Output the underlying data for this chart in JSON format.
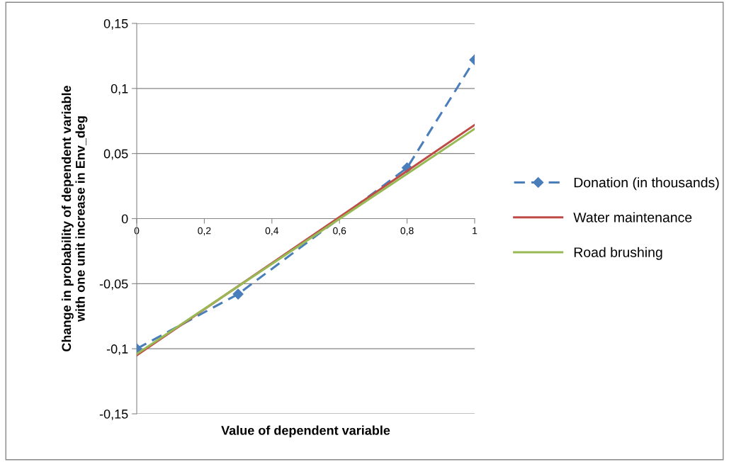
{
  "chart_data": {
    "type": "line",
    "xlabel": "Value of dependent variable",
    "ylabel": "Change in probability of dependent variable\nwith one unit increase in Env_deg",
    "series": [
      {
        "name": "Donation (in thousands)",
        "color": "#4a7ebb",
        "x": [
          0,
          0.3,
          0.8,
          1
        ],
        "values": [
          -0.1,
          -0.058,
          0.039,
          0.122
        ],
        "marker": "diamond",
        "line_style": "dashed"
      },
      {
        "name": "Water maintenance",
        "color": "#be4b48",
        "x": [
          0,
          1
        ],
        "values": [
          -0.105,
          0.072
        ],
        "marker": "none",
        "line_style": "solid"
      },
      {
        "name": "Road brushing",
        "color": "#98b954",
        "x": [
          0,
          1
        ],
        "values": [
          -0.104,
          0.069
        ],
        "marker": "none",
        "line_style": "solid"
      }
    ],
    "xlim": [
      0,
      1
    ],
    "xticks": [
      {
        "value": 0,
        "label": "0"
      },
      {
        "value": 0.2,
        "label": "0,2"
      },
      {
        "value": 0.4,
        "label": "0,4"
      },
      {
        "value": 0.6,
        "label": "0,6"
      },
      {
        "value": 0.8,
        "label": "0,8"
      },
      {
        "value": 1,
        "label": "1"
      }
    ],
    "ylim": [
      -0.15,
      0.15
    ],
    "yticks": [
      {
        "value": -0.15,
        "label": "-0,15"
      },
      {
        "value": -0.1,
        "label": "-0,1"
      },
      {
        "value": -0.05,
        "label": "-0,05"
      },
      {
        "value": 0,
        "label": "0"
      },
      {
        "value": 0.05,
        "label": "0,05"
      },
      {
        "value": 0.1,
        "label": "0,1"
      },
      {
        "value": 0.15,
        "label": "0,15"
      }
    ],
    "grid": "y",
    "legend": "right"
  }
}
